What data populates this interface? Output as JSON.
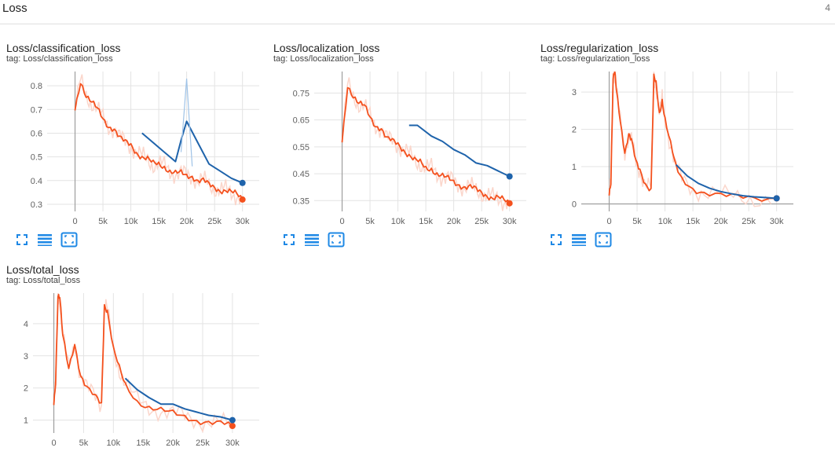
{
  "header": {
    "title": "Loss",
    "count": "4"
  },
  "colors": {
    "raw": "#fbd6cb",
    "smoothed": "#f4511e",
    "run2": "#1e63ab",
    "run2_raw": "#9fc3e7",
    "grid": "#e3e3e3",
    "axis": "#9e9e9e"
  },
  "toolbar_icons": [
    "fullscreen-icon",
    "toggle-log-scale-icon",
    "fit-domain-icon"
  ],
  "cards": [
    {
      "title": "Loss/classification_loss",
      "tag": "tag: Loss/classification_loss"
    },
    {
      "title": "Loss/localization_loss",
      "tag": "tag: Loss/localization_loss"
    },
    {
      "title": "Loss/regularization_loss",
      "tag": "tag: Loss/regularization_loss"
    },
    {
      "title": "Loss/total_loss",
      "tag": "tag: Loss/total_loss"
    }
  ],
  "chart_data": [
    {
      "type": "line",
      "title": "Loss/classification_loss",
      "xlim": [
        -5000,
        33000
      ],
      "ylim": [
        0.27,
        0.86
      ],
      "x_ticks": [
        0,
        5000,
        10000,
        15000,
        20000,
        25000,
        30000
      ],
      "x_tick_labels": [
        "0",
        "5k",
        "10k",
        "15k",
        "20k",
        "25k",
        "30k"
      ],
      "y_ticks": [
        0.3,
        0.4,
        0.5,
        0.6,
        0.7,
        0.8
      ],
      "y_tick_labels": [
        "0.3",
        "0.4",
        "0.5",
        "0.6",
        "0.7",
        "0.8"
      ],
      "series": [
        {
          "role": "smoothed",
          "x": [
            0,
            1000,
            2000,
            3000,
            4000,
            5000,
            6000,
            7000,
            8000,
            9000,
            10000,
            11000,
            12000,
            13000,
            14000,
            15000,
            16000,
            17000,
            18000,
            19000,
            20000,
            21000,
            22000,
            23000,
            24000,
            25000,
            26000,
            27000,
            28000,
            29000,
            30000
          ],
          "y": [
            0.7,
            0.82,
            0.76,
            0.73,
            0.7,
            0.66,
            0.63,
            0.62,
            0.58,
            0.56,
            0.55,
            0.52,
            0.5,
            0.49,
            0.47,
            0.47,
            0.46,
            0.44,
            0.43,
            0.43,
            0.42,
            0.42,
            0.4,
            0.4,
            0.38,
            0.37,
            0.36,
            0.36,
            0.35,
            0.34,
            0.32
          ]
        },
        {
          "role": "run2",
          "x": [
            12000,
            14000,
            16000,
            18000,
            19000,
            20000,
            22000,
            24000,
            26000,
            28000,
            30000
          ],
          "y": [
            0.6,
            0.56,
            0.52,
            0.48,
            0.57,
            0.65,
            0.56,
            0.47,
            0.44,
            0.41,
            0.39
          ]
        },
        {
          "role": "run2_raw",
          "x": [
            19000,
            20000,
            21000
          ],
          "y": [
            0.52,
            0.83,
            0.46
          ]
        }
      ]
    },
    {
      "type": "line",
      "title": "Loss/localization_loss",
      "xlim": [
        -5000,
        33000
      ],
      "ylim": [
        0.31,
        0.83
      ],
      "x_ticks": [
        0,
        5000,
        10000,
        15000,
        20000,
        25000,
        30000
      ],
      "x_tick_labels": [
        "0",
        "5k",
        "10k",
        "15k",
        "20k",
        "25k",
        "30k"
      ],
      "y_ticks": [
        0.35,
        0.45,
        0.55,
        0.65,
        0.75
      ],
      "y_tick_labels": [
        "0.35",
        "0.45",
        "0.55",
        "0.65",
        "0.75"
      ],
      "series": [
        {
          "role": "smoothed",
          "x": [
            0,
            1000,
            2000,
            3000,
            4000,
            5000,
            6000,
            7000,
            8000,
            9000,
            10000,
            11000,
            12000,
            13000,
            14000,
            15000,
            16000,
            17000,
            18000,
            19000,
            20000,
            21000,
            22000,
            23000,
            24000,
            25000,
            26000,
            27000,
            28000,
            29000,
            30000
          ],
          "y": [
            0.57,
            0.78,
            0.74,
            0.71,
            0.7,
            0.66,
            0.63,
            0.62,
            0.58,
            0.57,
            0.56,
            0.54,
            0.52,
            0.5,
            0.49,
            0.47,
            0.47,
            0.45,
            0.44,
            0.43,
            0.42,
            0.41,
            0.4,
            0.4,
            0.39,
            0.38,
            0.37,
            0.36,
            0.36,
            0.35,
            0.34
          ]
        },
        {
          "role": "run2",
          "x": [
            12000,
            13500,
            16000,
            18000,
            20000,
            22000,
            24000,
            26000,
            28000,
            30000
          ],
          "y": [
            0.63,
            0.63,
            0.59,
            0.57,
            0.54,
            0.52,
            0.49,
            0.48,
            0.46,
            0.44
          ]
        }
      ]
    },
    {
      "type": "line",
      "title": "Loss/regularization_loss",
      "xlim": [
        -5000,
        33000
      ],
      "ylim": [
        -0.2,
        3.55
      ],
      "x_ticks": [
        0,
        5000,
        10000,
        15000,
        20000,
        25000,
        30000
      ],
      "x_tick_labels": [
        "0",
        "5k",
        "10k",
        "15k",
        "20k",
        "25k",
        "30k"
      ],
      "y_ticks": [
        0,
        1,
        2,
        3
      ],
      "y_tick_labels": [
        "0",
        "1",
        "2",
        "3"
      ],
      "series": [
        {
          "role": "smoothed",
          "x": [
            0,
            300,
            700,
            1000,
            1300,
            2000,
            2800,
            3500,
            4000,
            4800,
            5500,
            6500,
            7500,
            8000,
            8400,
            9000,
            9500,
            10000,
            11000,
            12000,
            13000,
            15000,
            17000,
            20000,
            23000,
            26000,
            30000
          ],
          "y": [
            0.25,
            0.6,
            3.4,
            3.55,
            3.0,
            2.2,
            1.4,
            1.9,
            1.7,
            1.1,
            0.9,
            0.55,
            0.4,
            3.4,
            3.2,
            2.4,
            2.8,
            2.3,
            1.6,
            0.95,
            0.68,
            0.42,
            0.3,
            0.22,
            0.18,
            0.16,
            0.15
          ]
        },
        {
          "role": "run2",
          "x": [
            12000,
            14000,
            16000,
            18000,
            20000,
            22000,
            24000,
            26000,
            28000,
            30000
          ],
          "y": [
            1.05,
            0.75,
            0.55,
            0.42,
            0.33,
            0.27,
            0.22,
            0.19,
            0.17,
            0.15
          ]
        }
      ]
    },
    {
      "type": "line",
      "title": "Loss/total_loss",
      "xlim": [
        -3500,
        34500
      ],
      "ylim": [
        0.6,
        4.95
      ],
      "x_ticks": [
        0,
        5000,
        10000,
        15000,
        20000,
        25000,
        30000
      ],
      "x_tick_labels": [
        "0",
        "5k",
        "10k",
        "15k",
        "20k",
        "25k",
        "30k"
      ],
      "y_ticks": [
        1,
        2,
        3,
        4
      ],
      "y_tick_labels": [
        "1",
        "2",
        "3",
        "4"
      ],
      "series": [
        {
          "role": "smoothed",
          "x": [
            0,
            300,
            700,
            1000,
            1500,
            2500,
            3500,
            4500,
            5500,
            7000,
            8000,
            8500,
            9000,
            10000,
            11000,
            12000,
            14000,
            16000,
            18000,
            20000,
            22000,
            24000,
            26000,
            28000,
            30000
          ],
          "y": [
            1.5,
            2.2,
            4.9,
            4.8,
            3.6,
            2.6,
            3.4,
            2.4,
            2.0,
            1.7,
            1.5,
            4.6,
            4.4,
            3.2,
            2.6,
            2.1,
            1.6,
            1.4,
            1.3,
            1.2,
            1.1,
            1.0,
            0.95,
            0.9,
            0.82
          ]
        },
        {
          "role": "run2",
          "x": [
            12000,
            14000,
            16000,
            18000,
            20000,
            22000,
            24000,
            26000,
            28000,
            30000
          ],
          "y": [
            2.3,
            1.95,
            1.7,
            1.5,
            1.5,
            1.35,
            1.25,
            1.15,
            1.1,
            1.0
          ]
        }
      ]
    }
  ]
}
